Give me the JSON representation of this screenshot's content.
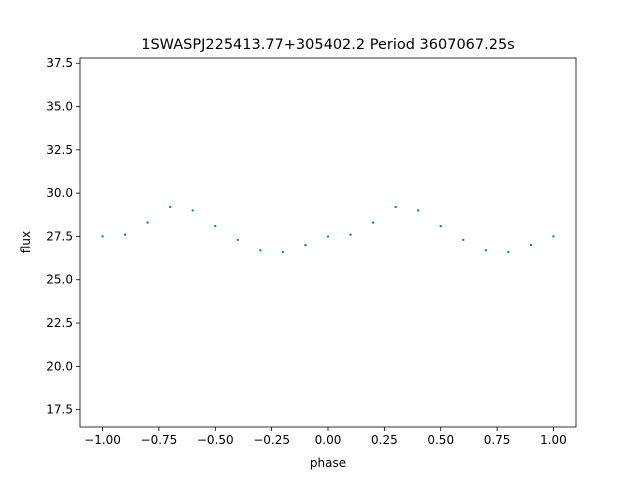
{
  "chart_data": {
    "type": "scatter",
    "title": "1SWASPJ225413.77+305402.2 Period 3607067.25s",
    "xlabel": "phase",
    "ylabel": "flux",
    "xlim": [
      -1.1,
      1.1
    ],
    "ylim": [
      16.5,
      37.8
    ],
    "x_ticks": [
      -1.0,
      -0.75,
      -0.5,
      -0.25,
      0.0,
      0.25,
      0.5,
      0.75,
      1.0
    ],
    "x_tick_labels": [
      "−1.00",
      "−0.75",
      "−0.50",
      "−0.25",
      "0.00",
      "0.25",
      "0.50",
      "0.75",
      "1.00"
    ],
    "y_ticks": [
      17.5,
      20.0,
      22.5,
      25.0,
      27.5,
      30.0,
      32.5,
      35.0,
      37.5
    ],
    "y_tick_labels": [
      "17.5",
      "20.0",
      "22.5",
      "25.0",
      "27.5",
      "30.0",
      "32.5",
      "35.0",
      "37.5"
    ],
    "grid": false,
    "legend": "none",
    "point_color": "#1f77b4",
    "series": [
      {
        "x": [
          -1.0,
          -0.9,
          -0.8,
          -0.7,
          -0.6,
          -0.5,
          -0.4,
          -0.3,
          -0.2,
          -0.1,
          0.0,
          0.1,
          0.2,
          0.3,
          0.4,
          0.5,
          0.6,
          0.7,
          0.8,
          0.9,
          1.0
        ],
        "y": [
          27.5,
          27.6,
          28.3,
          29.2,
          29.0,
          28.1,
          27.3,
          26.7,
          26.6,
          27.0,
          27.5,
          27.6,
          28.3,
          29.2,
          29.0,
          28.1,
          27.3,
          26.7,
          26.6,
          27.0,
          27.5
        ]
      }
    ]
  }
}
